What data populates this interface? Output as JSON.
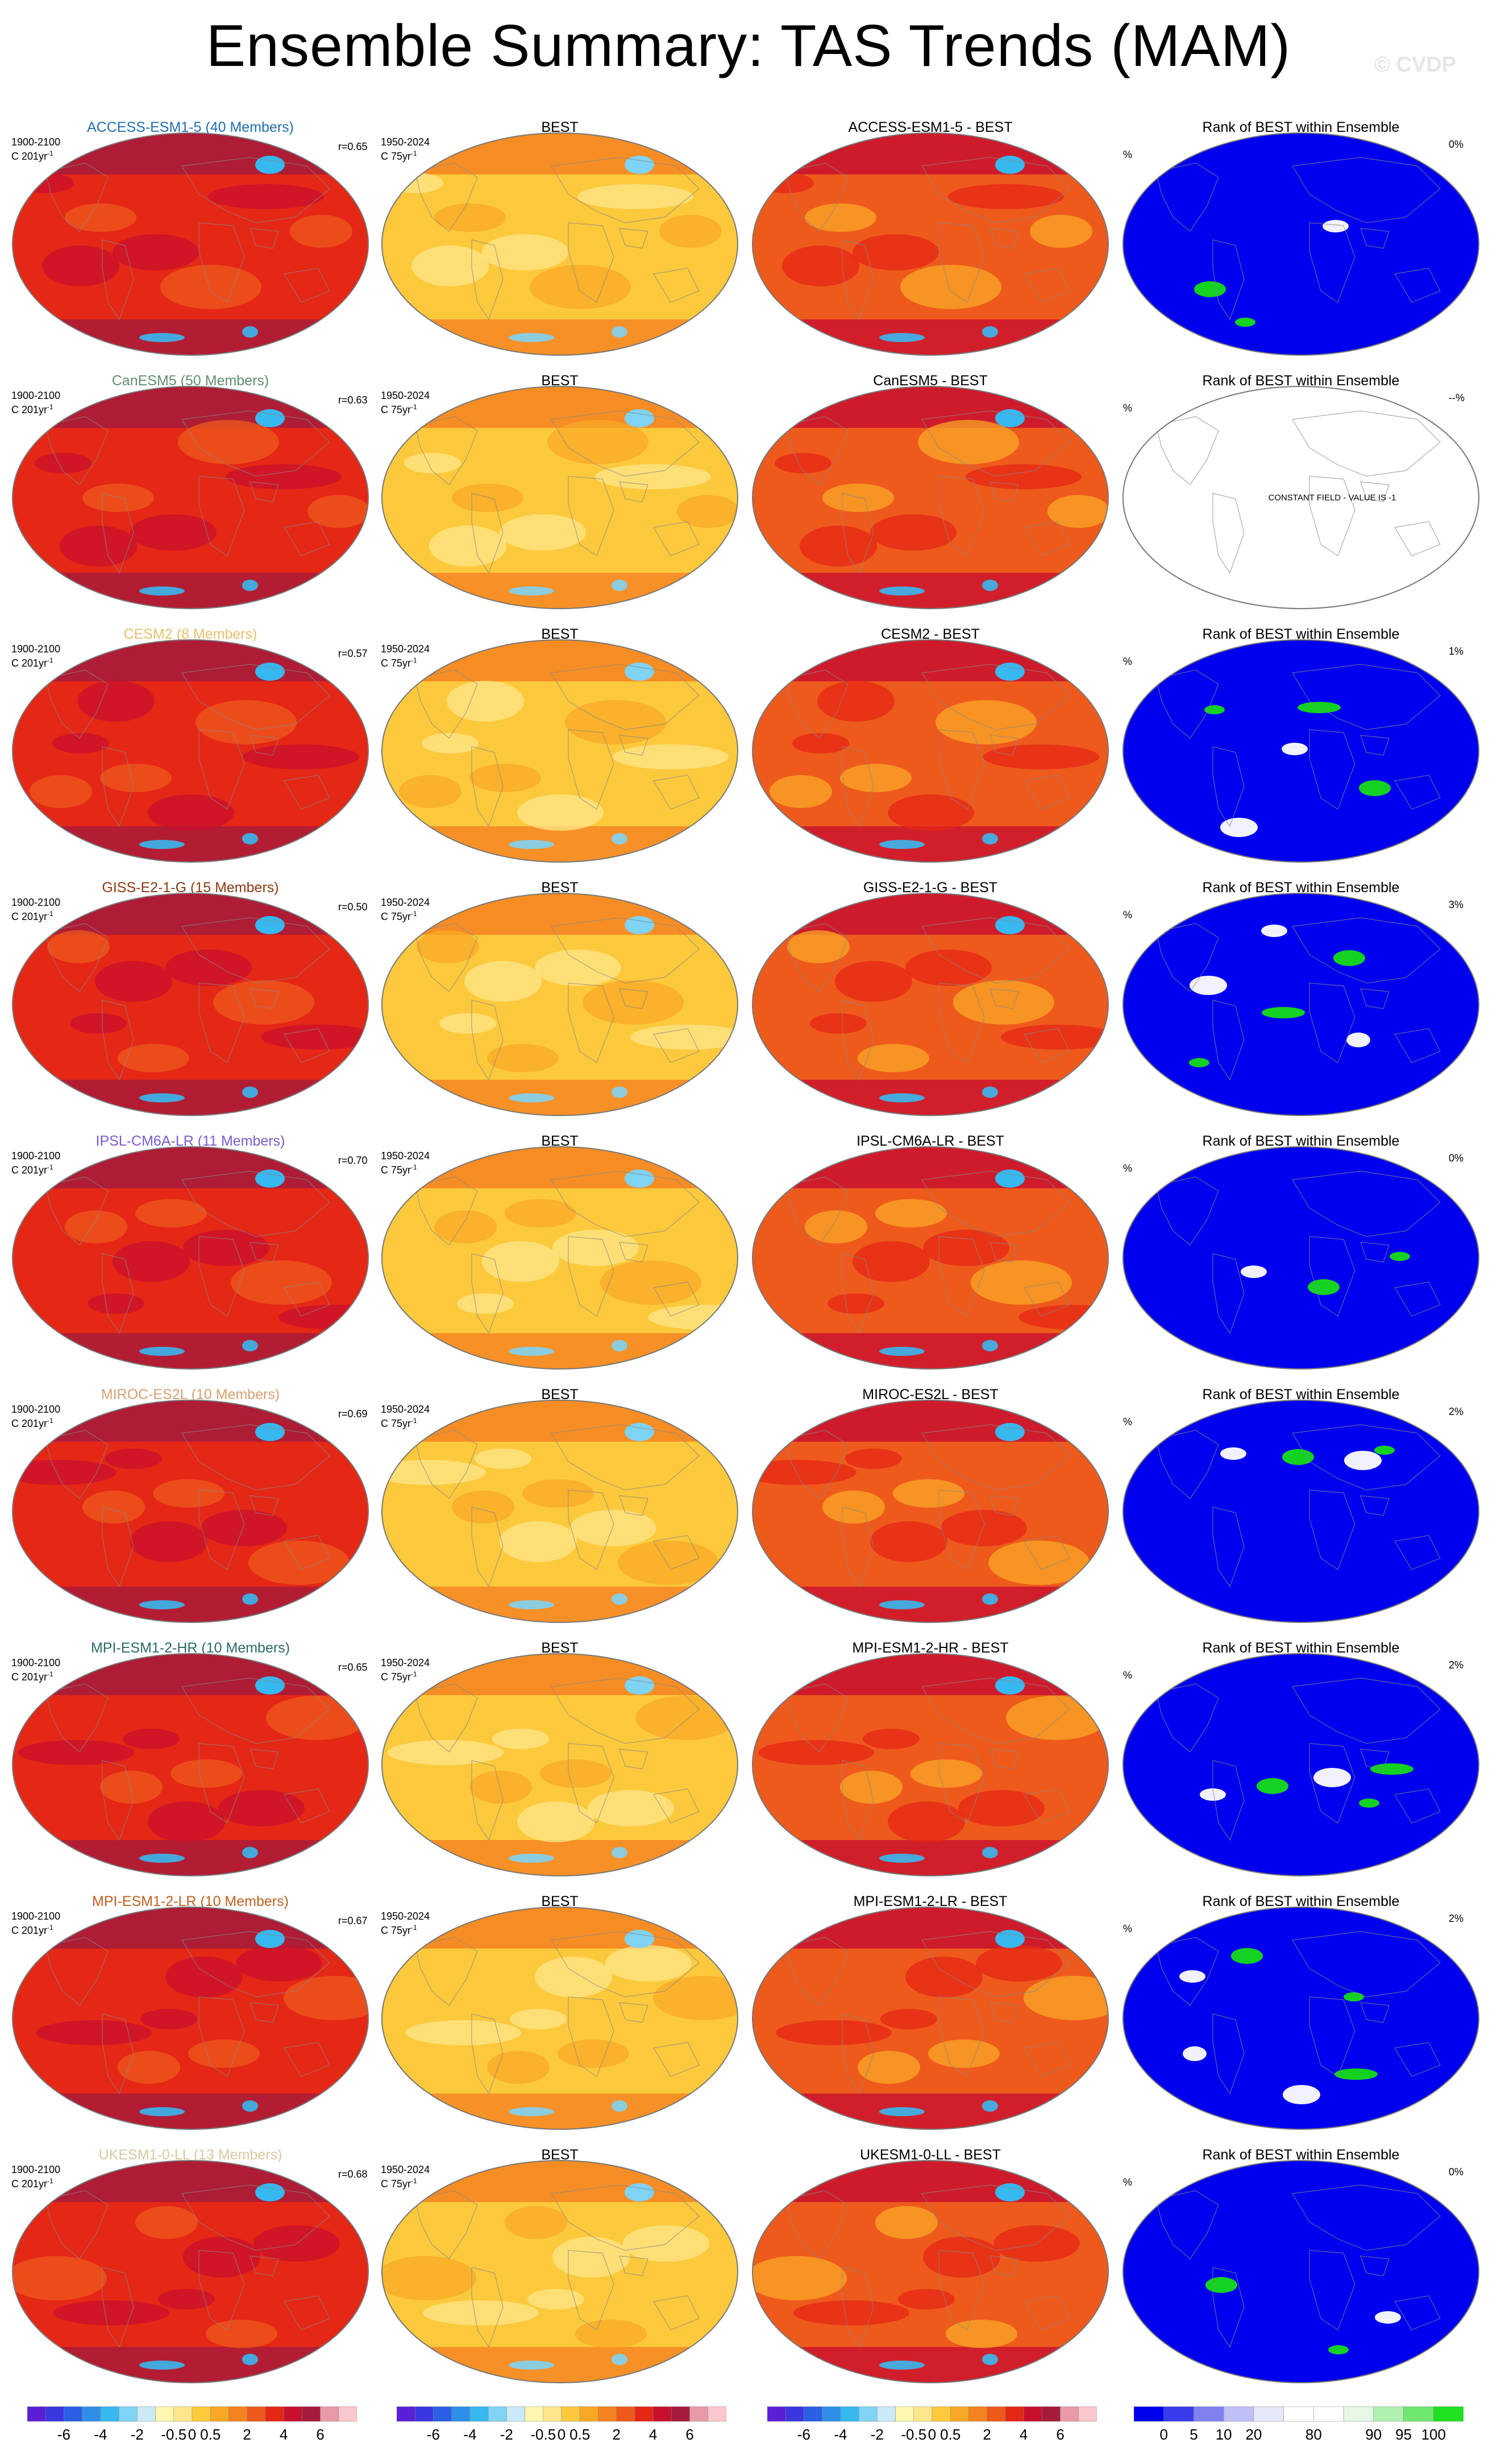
{
  "header": {
    "title": "Ensemble Summary: TAS Trends (MAM)",
    "copyright": "© CVDP"
  },
  "colors": {
    "trend": [
      "#5b1fd6",
      "#3a36e0",
      "#2a5fe6",
      "#2f8fe8",
      "#37b8ef",
      "#7fd3f4",
      "#cbe9f6",
      "#fff6b0",
      "#fde58a",
      "#fcc93c",
      "#f9a825",
      "#f58220",
      "#ee5a1c",
      "#e52716",
      "#c8102e",
      "#a51b3b",
      "#e89aa8",
      "#f9c7cd"
    ],
    "rank": [
      "#0000ee",
      "#3a3aee",
      "#8080f0",
      "#c0c0f8",
      "#e8e8fb",
      "#ffffff",
      "#ffffff",
      "#e5f8e5",
      "#b0f0b0",
      "#70e870",
      "#20e020"
    ],
    "ocean_base": "#f25a12",
    "rank_base": "#0000ee",
    "rank_high": "#16dd16"
  },
  "chart_data": {
    "type": "map_panel_grid",
    "columns": [
      "model_ensemble_mean",
      "observations",
      "difference",
      "rank"
    ],
    "model_period": "1900-2100",
    "obs_period": "1950-2024",
    "model_units": "C 201yr",
    "obs_units": "C 75yr",
    "units_superscript": "-1",
    "rank_title": "Rank of BEST within Ensemble",
    "obs_title": "BEST",
    "rank_units": "%",
    "rows": [
      {
        "model": "ACCESS-ESM1-5 (40 Members)",
        "color": "#1f6fb4",
        "r": "r=0.65",
        "diff_title": "ACCESS-ESM1-5 - BEST",
        "rank_pct": "0%",
        "constant": false
      },
      {
        "model": "CanESM5 (50 Members)",
        "color": "#5f8f6f",
        "r": "r=0.63",
        "diff_title": "CanESM5 - BEST",
        "rank_pct": "--%",
        "constant": true,
        "constant_text": "CONSTANT FIELD - VALUE IS -1"
      },
      {
        "model": "CESM2 (8 Members)",
        "color": "#e8c06a",
        "r": "r=0.57",
        "diff_title": "CESM2 - BEST",
        "rank_pct": "1%",
        "constant": false
      },
      {
        "model": "GISS-E2-1-G (15 Members)",
        "color": "#8a3a10",
        "r": "r=0.50",
        "diff_title": "GISS-E2-1-G - BEST",
        "rank_pct": "3%",
        "constant": false
      },
      {
        "model": "IPSL-CM6A-LR (11 Members)",
        "color": "#7a5ad0",
        "r": "r=0.70",
        "diff_title": "IPSL-CM6A-LR - BEST",
        "rank_pct": "0%",
        "constant": false
      },
      {
        "model": "MIROC-ES2L (10 Members)",
        "color": "#d8a070",
        "r": "r=0.69",
        "diff_title": "MIROC-ES2L - BEST",
        "rank_pct": "2%",
        "constant": false
      },
      {
        "model": "MPI-ESM1-2-HR (10 Members)",
        "color": "#2a6a6a",
        "r": "r=0.65",
        "diff_title": "MPI-ESM1-2-HR - BEST",
        "rank_pct": "2%",
        "constant": false
      },
      {
        "model": "MPI-ESM1-2-LR (10 Members)",
        "color": "#c06020",
        "r": "r=0.67",
        "diff_title": "MPI-ESM1-2-LR - BEST",
        "rank_pct": "2%",
        "constant": false
      },
      {
        "model": "UKESM1-0-LL (13 Members)",
        "color": "#d8c8a0",
        "r": "r=0.68",
        "diff_title": "UKESM1-0-LL - BEST",
        "rank_pct": "0%",
        "constant": false
      }
    ],
    "trend_colorbar": {
      "labels": [
        "-6",
        "-4",
        "-2",
        "-0.5",
        "0",
        "0.5",
        "2",
        "4",
        "6"
      ]
    },
    "rank_colorbar": {
      "labels": [
        "0",
        "5",
        "10",
        "20",
        "80",
        "90",
        "95",
        "100"
      ]
    }
  }
}
